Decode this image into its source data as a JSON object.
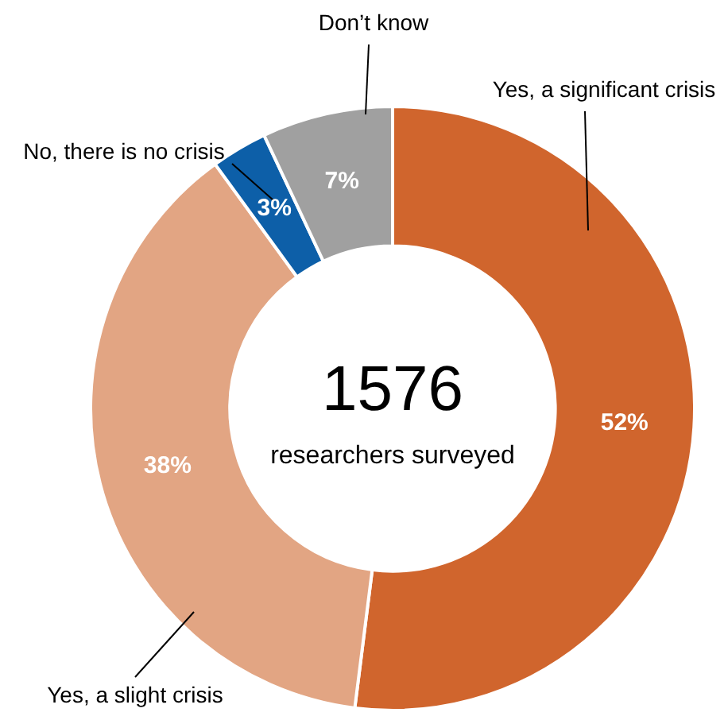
{
  "chart_data": {
    "type": "donut",
    "categories": [
      "Yes, a significant crisis",
      "Yes, a slight crisis",
      "No, there is no crisis",
      "Don’t know"
    ],
    "values": [
      52,
      38,
      3,
      7
    ],
    "colors": [
      "#d0652d",
      "#e2a583",
      "#0d5fa8",
      "#a0a0a0"
    ],
    "value_labels": [
      "52%",
      "38%",
      "3%",
      "7%"
    ],
    "legend": false,
    "annotations": [
      "1576",
      "researchers surveyed"
    ]
  }
}
